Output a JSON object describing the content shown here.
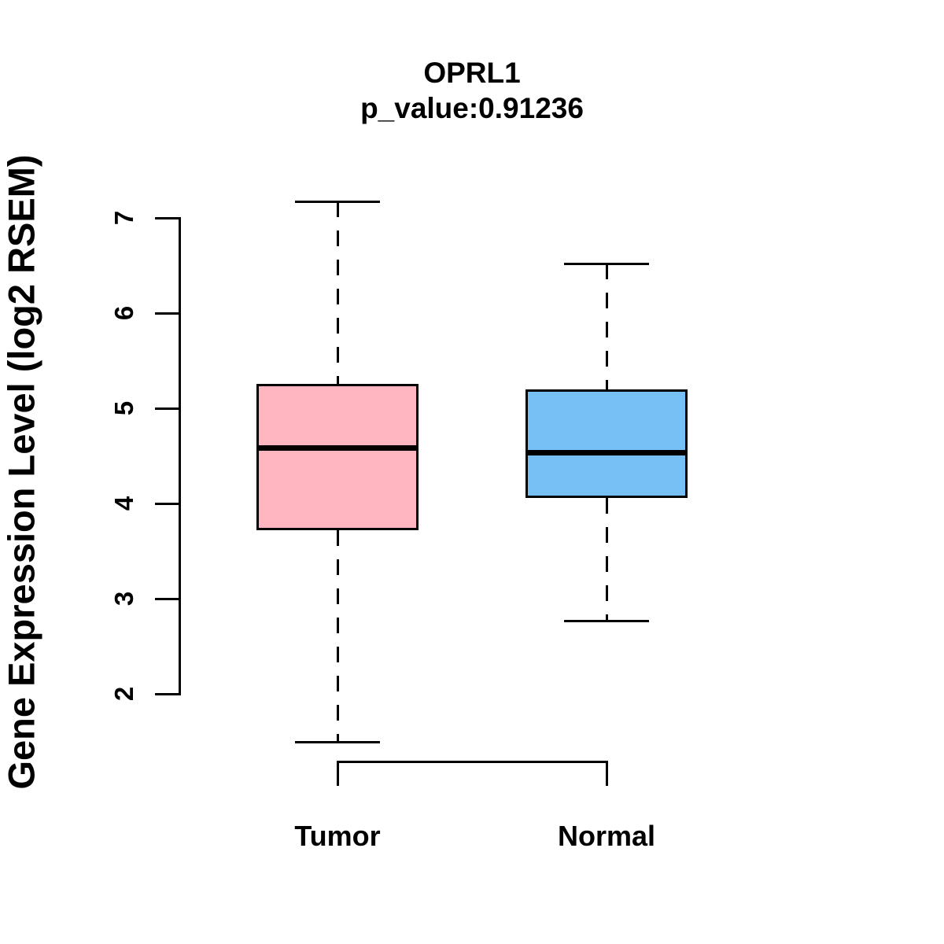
{
  "figure": {
    "background": "#ffffff",
    "text_color": "#000000"
  },
  "chart_data": {
    "type": "boxplot",
    "title": "OPRL1",
    "subtitle": "p_value:0.91236",
    "p_value": 0.91236,
    "gene": "OPRL1",
    "ylabel": "Gene Expression Level (log2 RSEM)",
    "xlabel": "",
    "yticks": [
      2,
      3,
      4,
      5,
      6,
      7
    ],
    "ylim": [
      1.4,
      7.3
    ],
    "grid": false,
    "legend": "none",
    "categories": [
      "Tumor",
      "Normal"
    ],
    "series": [
      {
        "name": "Tumor",
        "color": "#FFB6C1",
        "border_color": "#000000",
        "whisker_low": 1.5,
        "q1": 3.72,
        "median": 4.58,
        "q3": 5.26,
        "whisker_high": 7.17
      },
      {
        "name": "Normal",
        "color": "#77C0F5",
        "border_color": "#000000",
        "whisker_low": 2.77,
        "q1": 4.06,
        "median": 4.53,
        "q3": 5.2,
        "whisker_high": 6.52
      }
    ]
  }
}
